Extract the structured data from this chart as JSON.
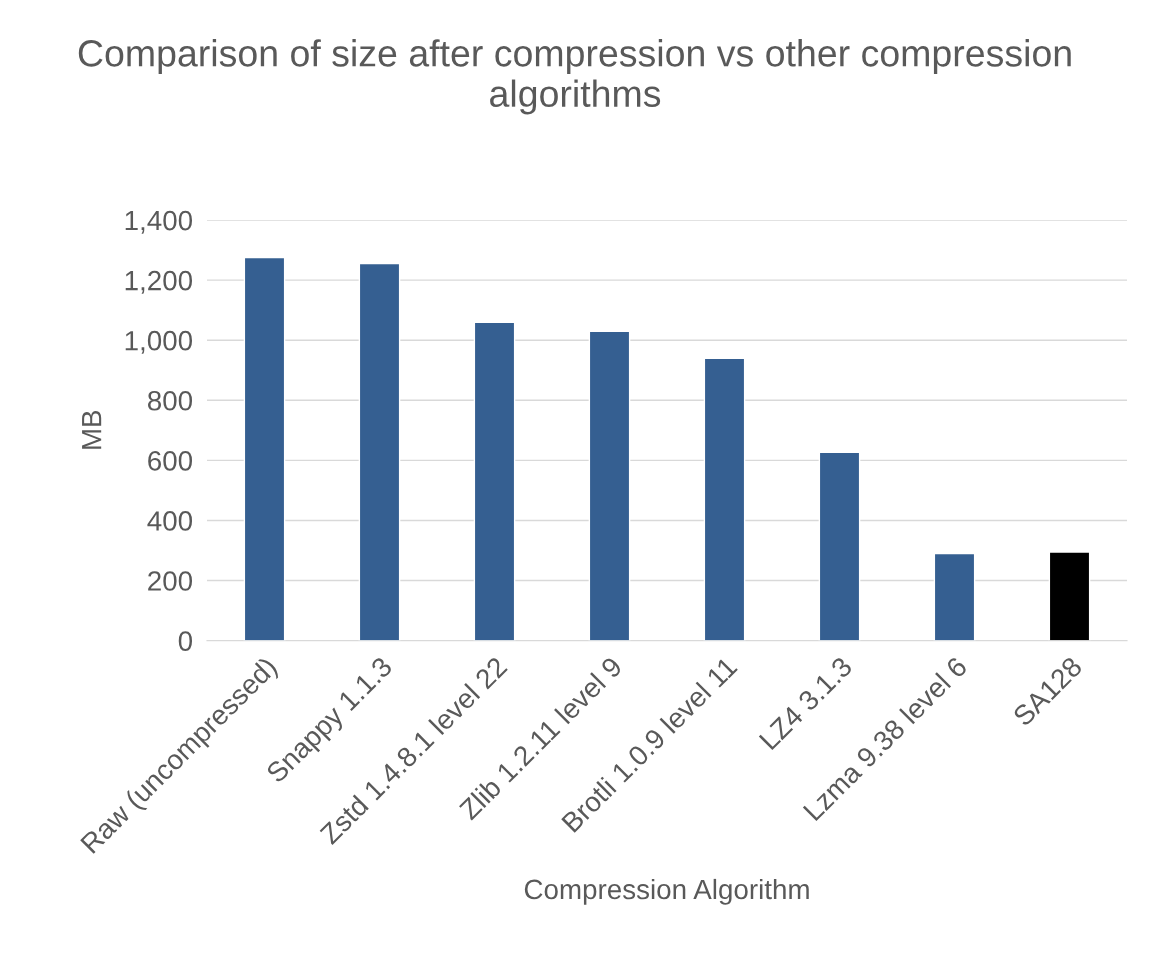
{
  "chart_data": {
    "type": "bar",
    "title": "Comparison of size after compression vs other compression algorithms",
    "xlabel": "Compression Algorithm",
    "ylabel": "MB",
    "categories": [
      "Raw (uncompressed)",
      "Snappy 1.1.3",
      "Zstd 1.4.8.1 level 22",
      "Zlib 1.2.11 level 9",
      "Brotli 1.0.9 level 11",
      "LZ4 3.1.3",
      "Lzma 9.38 level 6",
      "SA128"
    ],
    "values": [
      1275,
      1255,
      1060,
      1030,
      940,
      627,
      290,
      295
    ],
    "colors": [
      "#355f91",
      "#355f91",
      "#355f91",
      "#355f91",
      "#355f91",
      "#355f91",
      "#355f91",
      "#000000"
    ],
    "ylim": [
      0,
      1400
    ],
    "yticks": [
      0,
      {
        "value": 200,
        "label": "200"
      },
      {
        "value": 400,
        "label": "400"
      },
      {
        "value": 600,
        "label": "600"
      },
      {
        "value": 800,
        "label": "800"
      },
      {
        "value": 1000,
        "label": "1,000"
      },
      {
        "value": 1200,
        "label": "1,200"
      },
      {
        "value": 1400,
        "label": "1,400"
      }
    ],
    "grid": "y"
  }
}
